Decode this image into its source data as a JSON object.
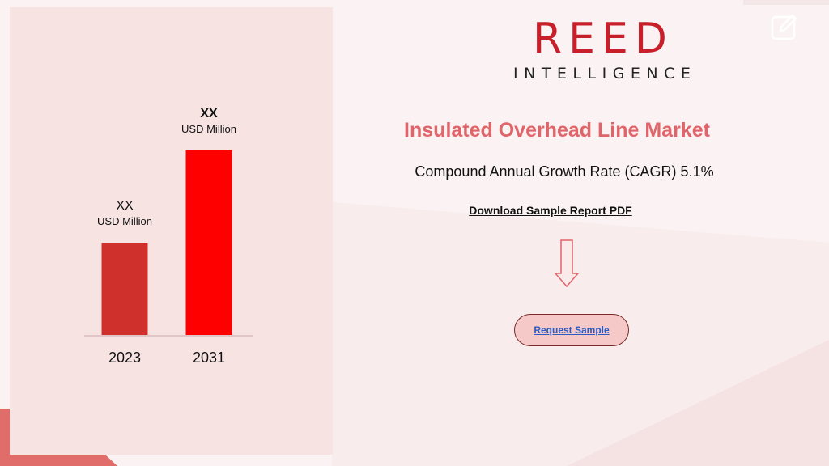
{
  "logo": {
    "name": "REED",
    "sub": "INTELLIGENCE"
  },
  "title": "Insulated Overhead Line Market",
  "cagr_text": "Compound Annual Growth Rate (CAGR)  5.1%",
  "download_link": "Download Sample Report PDF",
  "request_button": "Request Sample",
  "icons": [
    "edit-icon",
    "down-arrow-icon"
  ],
  "colors": {
    "accent": "#c8202b",
    "title": "#e0656a",
    "bar_2023": "#d0302c",
    "bar_2031": "#ff0000",
    "panel": "#f8e3e3",
    "button_fill": "#f6c9c9",
    "link": "#2a5cc4"
  },
  "chart_data": {
    "type": "bar",
    "categories": [
      "2023",
      "2031"
    ],
    "values": [
      57,
      114
    ],
    "ylim": [
      0,
      114
    ],
    "data_labels": [
      {
        "value": "XX",
        "unit": "USD Million"
      },
      {
        "value": "XX",
        "unit": "USD Million"
      }
    ],
    "grid": false
  }
}
